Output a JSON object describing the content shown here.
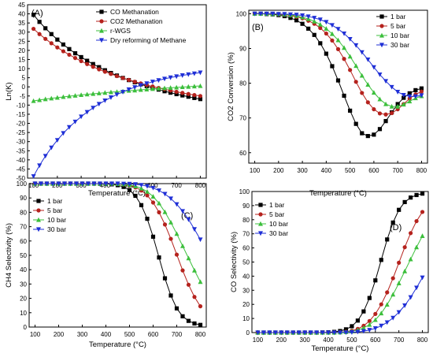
{
  "chart_data": [
    {
      "type": "line",
      "panel_label": "(A)",
      "title": "",
      "xlabel": "Temperature (°C)",
      "ylabel": "Ln(K)",
      "xlim": [
        75,
        825
      ],
      "ylim": [
        -50,
        45
      ],
      "xticks": [
        100,
        200,
        300,
        400,
        500,
        600,
        700,
        800
      ],
      "yticks": [
        -50,
        -45,
        -40,
        -35,
        -30,
        -25,
        -20,
        -15,
        -10,
        -5,
        0,
        5,
        10,
        15,
        20,
        25,
        30,
        35,
        40,
        45
      ],
      "grid": false,
      "legend_position": "top-right",
      "x": [
        100,
        125,
        150,
        175,
        200,
        225,
        250,
        275,
        300,
        325,
        350,
        375,
        400,
        425,
        450,
        475,
        500,
        525,
        550,
        575,
        600,
        625,
        650,
        675,
        700,
        725,
        750,
        775,
        800
      ],
      "series": [
        {
          "name": "CO Methanation",
          "color": "#000000",
          "marker": "square",
          "values": [
            39.5,
            35.6,
            32.1,
            28.9,
            25.9,
            23.2,
            20.7,
            18.4,
            16.3,
            14.3,
            12.5,
            10.8,
            9.1,
            7.6,
            6.2,
            4.9,
            3.7,
            2.5,
            1.4,
            0.4,
            -0.6,
            -1.5,
            -2.4,
            -3.2,
            -4.0,
            -4.7,
            -5.4,
            -6.1,
            -6.7
          ]
        },
        {
          "name": "CO2 Methanation",
          "color": "#b5221d",
          "marker": "circle",
          "values": [
            31.8,
            28.9,
            26.3,
            23.9,
            21.6,
            19.5,
            17.6,
            15.8,
            14.1,
            12.5,
            11.0,
            9.6,
            8.3,
            7.1,
            5.9,
            4.8,
            3.8,
            2.8,
            1.9,
            1.0,
            0.2,
            -0.6,
            -1.3,
            -2.0,
            -2.7,
            -3.3,
            -3.9,
            -4.5,
            -5.0
          ]
        },
        {
          "name": "r-WGS",
          "color": "#3cbf3c",
          "marker": "triangle-up",
          "values": [
            -7.7,
            -7.2,
            -6.7,
            -6.3,
            -5.9,
            -5.5,
            -5.1,
            -4.8,
            -4.4,
            -4.1,
            -3.8,
            -3.5,
            -3.2,
            -2.9,
            -2.7,
            -2.4,
            -2.1,
            -1.9,
            -1.6,
            -1.4,
            -1.1,
            -0.9,
            -0.7,
            -0.5,
            -0.3,
            -0.1,
            0.1,
            0.3,
            0.5
          ]
        },
        {
          "name": "Dry reforming of Methane",
          "color": "#1f2fd6",
          "marker": "triangle-down",
          "values": [
            -49.0,
            -43.1,
            -37.9,
            -33.3,
            -29.2,
            -25.4,
            -22.1,
            -19.1,
            -16.3,
            -13.8,
            -11.5,
            -9.4,
            -7.5,
            -5.8,
            -4.2,
            -2.8,
            -1.4,
            -0.2,
            0.9,
            1.9,
            2.8,
            3.6,
            4.4,
            5.1,
            5.7,
            6.3,
            6.8,
            7.3,
            7.8
          ]
        }
      ]
    },
    {
      "type": "line",
      "panel_label": "(B)",
      "title": "",
      "xlabel": "Temperature (°C)",
      "ylabel": "CO2 Conversion (%)",
      "xlim": [
        75,
        825
      ],
      "ylim": [
        57,
        101
      ],
      "xticks": [
        100,
        200,
        300,
        400,
        500,
        600,
        700,
        800
      ],
      "yticks": [
        60,
        70,
        80,
        90,
        100
      ],
      "grid": false,
      "legend_position": "top-right",
      "x": [
        100,
        125,
        150,
        175,
        200,
        225,
        250,
        275,
        300,
        325,
        350,
        375,
        400,
        425,
        450,
        475,
        500,
        525,
        550,
        575,
        600,
        625,
        650,
        675,
        700,
        725,
        750,
        775,
        800
      ],
      "series": [
        {
          "name": "1 bar",
          "color": "#000000",
          "marker": "square",
          "values": [
            100,
            100,
            99.9,
            99.8,
            99.6,
            99.3,
            98.8,
            98.1,
            97.1,
            95.7,
            93.9,
            91.5,
            88.5,
            84.9,
            80.8,
            76.4,
            72.1,
            68.3,
            65.6,
            64.8,
            65.2,
            66.8,
            69.1,
            71.6,
            74.0,
            75.8,
            77.1,
            78.0,
            78.5
          ]
        },
        {
          "name": "5 bar",
          "color": "#b5221d",
          "marker": "circle",
          "values": [
            100,
            100,
            100,
            99.9,
            99.8,
            99.7,
            99.5,
            99.1,
            98.7,
            98.0,
            97.1,
            95.9,
            94.3,
            92.3,
            89.8,
            87.0,
            83.8,
            80.4,
            77.2,
            74.5,
            72.5,
            71.3,
            71.0,
            71.4,
            72.5,
            74.0,
            75.6,
            76.8,
            77.6
          ]
        },
        {
          "name": "10 bar",
          "color": "#3cbf3c",
          "marker": "triangle-up",
          "values": [
            100,
            100,
            100,
            99.9,
            99.9,
            99.8,
            99.6,
            99.4,
            99.0,
            98.5,
            97.8,
            96.9,
            95.7,
            94.2,
            92.4,
            90.2,
            87.7,
            85.0,
            82.2,
            79.6,
            77.3,
            75.4,
            74.0,
            73.3,
            73.3,
            73.9,
            74.8,
            75.7,
            76.3
          ]
        },
        {
          "name": "30 bar",
          "color": "#1f2fd6",
          "marker": "triangle-down",
          "values": [
            100,
            100,
            100,
            100,
            99.9,
            99.9,
            99.8,
            99.7,
            99.5,
            99.2,
            98.8,
            98.3,
            97.6,
            96.7,
            95.6,
            94.3,
            92.7,
            90.9,
            88.9,
            86.8,
            84.6,
            82.5,
            80.6,
            78.9,
            77.5,
            76.6,
            76.2,
            76.2,
            76.5
          ]
        }
      ]
    },
    {
      "type": "line",
      "panel_label": "(C)",
      "title": "",
      "xlabel": "Temperature (°C)",
      "ylabel": "CH4 Selectivity (%)",
      "xlim": [
        75,
        825
      ],
      "ylim": [
        0,
        100
      ],
      "xticks": [
        100,
        200,
        300,
        400,
        500,
        600,
        700,
        800
      ],
      "yticks": [
        0,
        10,
        20,
        30,
        40,
        50,
        60,
        70,
        80,
        90,
        100
      ],
      "grid": false,
      "legend_position": "top-left",
      "x": [
        100,
        125,
        150,
        175,
        200,
        225,
        250,
        275,
        300,
        325,
        350,
        375,
        400,
        425,
        450,
        475,
        500,
        525,
        550,
        575,
        600,
        625,
        650,
        675,
        700,
        725,
        750,
        775,
        800
      ],
      "series": [
        {
          "name": "1 bar",
          "color": "#000000",
          "marker": "square",
          "values": [
            100,
            100,
            100,
            100,
            100,
            100,
            100,
            100,
            100,
            100,
            100,
            99.9,
            99.8,
            99.5,
            98.9,
            97.7,
            95.5,
            91.5,
            85.0,
            75.5,
            63.0,
            48.5,
            34.0,
            22.0,
            13.0,
            7.5,
            4.3,
            2.5,
            1.5
          ]
        },
        {
          "name": "5 bar",
          "color": "#b5221d",
          "marker": "circle",
          "values": [
            100,
            100,
            100,
            100,
            100,
            100,
            100,
            100,
            100,
            100,
            100,
            100,
            100,
            99.9,
            99.7,
            99.4,
            98.7,
            97.4,
            95.2,
            91.8,
            86.8,
            80.0,
            71.5,
            61.5,
            50.5,
            39.5,
            29.5,
            21.0,
            14.5
          ]
        },
        {
          "name": "10 bar",
          "color": "#3cbf3c",
          "marker": "triangle-up",
          "values": [
            100,
            100,
            100,
            100,
            100,
            100,
            100,
            100,
            100,
            100,
            100,
            100,
            100,
            100,
            99.8,
            99.6,
            99.1,
            98.2,
            96.7,
            94.4,
            91.0,
            86.3,
            80.2,
            73.0,
            65.0,
            56.5,
            48.0,
            39.5,
            31.5
          ]
        },
        {
          "name": "30 bar",
          "color": "#1f2fd6",
          "marker": "triangle-down",
          "values": [
            100,
            100,
            100,
            100,
            100,
            100,
            100,
            100,
            100,
            100,
            100,
            100,
            100,
            100,
            100,
            99.9,
            99.8,
            99.5,
            99.0,
            98.2,
            97.0,
            95.2,
            92.8,
            89.6,
            85.6,
            80.8,
            75.0,
            68.2,
            61.0
          ]
        }
      ]
    },
    {
      "type": "line",
      "panel_label": "(D)",
      "title": "",
      "xlabel": "Temperature (°C)",
      "ylabel": "CO Selectivity (%)",
      "xlim": [
        75,
        825
      ],
      "ylim": [
        0,
        100
      ],
      "xticks": [
        100,
        200,
        300,
        400,
        500,
        600,
        700,
        800
      ],
      "yticks": [
        0,
        10,
        20,
        30,
        40,
        50,
        60,
        70,
        80,
        90,
        100
      ],
      "grid": false,
      "legend_position": "top-left",
      "x": [
        100,
        125,
        150,
        175,
        200,
        225,
        250,
        275,
        300,
        325,
        350,
        375,
        400,
        425,
        450,
        475,
        500,
        525,
        550,
        575,
        600,
        625,
        650,
        675,
        700,
        725,
        750,
        775,
        800
      ],
      "series": [
        {
          "name": "1 bar",
          "color": "#000000",
          "marker": "square",
          "values": [
            0,
            0,
            0,
            0,
            0,
            0,
            0,
            0,
            0,
            0,
            0,
            0.1,
            0.2,
            0.5,
            1.1,
            2.3,
            4.5,
            8.5,
            15.0,
            24.5,
            37.0,
            51.5,
            66.0,
            78.0,
            87.0,
            92.5,
            95.7,
            97.5,
            98.5
          ]
        },
        {
          "name": "5 bar",
          "color": "#b5221d",
          "marker": "circle",
          "values": [
            0,
            0,
            0,
            0,
            0,
            0,
            0,
            0,
            0,
            0,
            0,
            0,
            0,
            0.1,
            0.3,
            0.6,
            1.3,
            2.6,
            4.8,
            8.2,
            13.2,
            20.0,
            28.5,
            38.5,
            49.5,
            60.5,
            70.5,
            79.0,
            85.5
          ]
        },
        {
          "name": "10 bar",
          "color": "#3cbf3c",
          "marker": "triangle-up",
          "values": [
            0,
            0,
            0,
            0,
            0,
            0,
            0,
            0,
            0,
            0,
            0,
            0,
            0,
            0,
            0.2,
            0.4,
            0.9,
            1.8,
            3.3,
            5.6,
            9.0,
            13.7,
            19.8,
            27.0,
            35.0,
            43.5,
            52.0,
            60.5,
            68.5
          ]
        },
        {
          "name": "30 bar",
          "color": "#1f2fd6",
          "marker": "triangle-down",
          "values": [
            0,
            0,
            0,
            0,
            0,
            0,
            0,
            0,
            0,
            0,
            0,
            0,
            0,
            0,
            0,
            0.1,
            0.2,
            0.5,
            1.0,
            1.8,
            3.0,
            4.8,
            7.2,
            10.4,
            14.4,
            19.2,
            25.0,
            31.8,
            39.0
          ]
        }
      ]
    }
  ]
}
